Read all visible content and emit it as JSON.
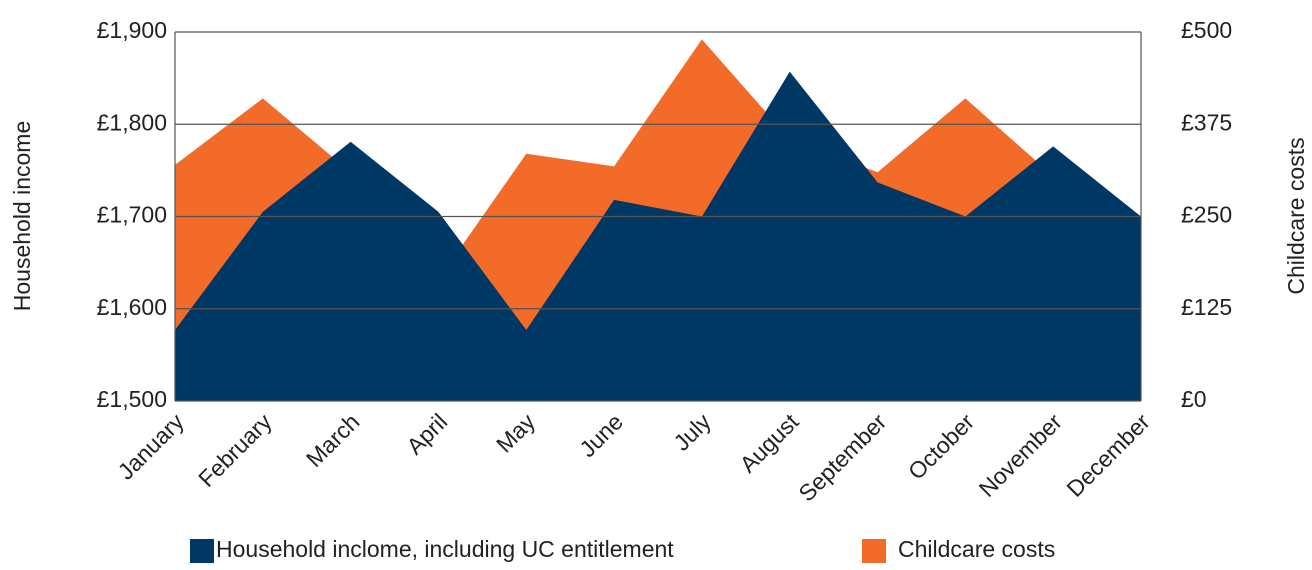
{
  "chart_data": {
    "type": "area",
    "y_label": "Household income",
    "y2_label": "Childcare costs",
    "categories": [
      "January",
      "February",
      "March",
      "April",
      "May",
      "June",
      "July",
      "August",
      "September",
      "October",
      "November",
      "December"
    ],
    "series": [
      {
        "name": "Household inclome, including UC entitlement",
        "color": "#003865",
        "axis": "y",
        "values": [
          1577,
          1705,
          1781,
          1705,
          1577,
          1718,
          1700,
          1857,
          1737,
          1700,
          1776,
          1700
        ]
      },
      {
        "name": "Childcare costs",
        "color": "#f26b29",
        "axis": "y2",
        "values": [
          320,
          410,
          310,
          165,
          335,
          318,
          490,
          355,
          310,
          410,
          305,
          250
        ]
      }
    ],
    "ylim": [
      1500,
      1900
    ],
    "yticks": [
      {
        "value": 1500,
        "label": "£1,500"
      },
      {
        "value": 1600,
        "label": "£1,600"
      },
      {
        "value": 1700,
        "label": "£1,700"
      },
      {
        "value": 1800,
        "label": "£1,800"
      },
      {
        "value": 1900,
        "label": "£1,900"
      }
    ],
    "y2lim": [
      0,
      500
    ],
    "y2ticks": [
      {
        "value": 0,
        "label": "£0"
      },
      {
        "value": 125,
        "label": "£125"
      },
      {
        "value": 250,
        "label": "£250"
      },
      {
        "value": 375,
        "label": "£375"
      },
      {
        "value": 500,
        "label": "£500"
      }
    ],
    "grid": true
  }
}
